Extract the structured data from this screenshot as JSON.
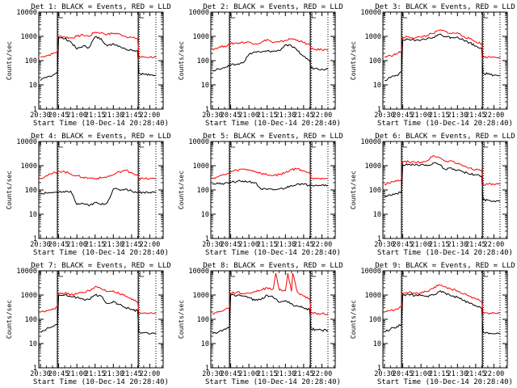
{
  "common": {
    "xlabel": "Start Time (10-Dec-14 20:28:40)",
    "ylabel": "Counts/sec",
    "xticks": [
      "20:30",
      "20:45",
      "21:00",
      "21:15",
      "21:30",
      "21:45",
      "22:00"
    ],
    "xlim": [
      "20:28:40",
      "22:11:00"
    ],
    "yscale": "log",
    "ylim": [
      1,
      10000
    ],
    "yticks": [
      "1",
      "10",
      "100",
      "1000",
      "10000"
    ],
    "solid_markers": [
      "20:44:00",
      "21:50:30"
    ],
    "dotted_markers": [
      "20:44:45",
      "21:51:30",
      "22:05:00"
    ],
    "colors": {
      "events": "#000000",
      "lld": "#ff0000"
    }
  },
  "chart_data": [
    {
      "type": "line",
      "title": "Det 1: BLACK = Events, RED = LLD",
      "x": [
        "20:30",
        "20:35",
        "20:40",
        "20:44",
        "20:45",
        "20:50",
        "20:55",
        "21:00",
        "21:05",
        "21:10",
        "21:15",
        "21:20",
        "21:25",
        "21:30",
        "21:35",
        "21:40",
        "21:45",
        "21:50",
        "21:51",
        "21:55",
        "22:00",
        "22:05"
      ],
      "series": [
        {
          "name": "LLD",
          "values": [
            140,
            160,
            190,
            240,
            1000,
            950,
            850,
            1000,
            1150,
            1000,
            1500,
            1400,
            1200,
            1350,
            1250,
            1000,
            900,
            800,
            140,
            140,
            140,
            140
          ]
        },
        {
          "name": "Events",
          "values": [
            15,
            20,
            25,
            35,
            900,
            800,
            600,
            300,
            400,
            350,
            950,
            800,
            400,
            500,
            400,
            300,
            280,
            250,
            30,
            28,
            25,
            25
          ]
        }
      ]
    },
    {
      "type": "line",
      "title": "Det 2: BLACK = Events, RED = LLD",
      "x": [
        "20:30",
        "20:35",
        "20:40",
        "20:44",
        "20:45",
        "20:50",
        "20:55",
        "21:00",
        "21:05",
        "21:10",
        "21:15",
        "21:20",
        "21:25",
        "21:30",
        "21:35",
        "21:40",
        "21:45",
        "21:50",
        "21:51",
        "21:55",
        "22:00",
        "22:05"
      ],
      "series": [
        {
          "name": "LLD",
          "values": [
            300,
            350,
            400,
            450,
            500,
            530,
            560,
            580,
            500,
            550,
            750,
            550,
            580,
            680,
            800,
            700,
            550,
            450,
            300,
            290,
            280,
            280
          ]
        },
        {
          "name": "Events",
          "values": [
            40,
            45,
            50,
            60,
            65,
            70,
            80,
            180,
            230,
            220,
            250,
            240,
            260,
            450,
            400,
            250,
            150,
            100,
            50,
            48,
            45,
            45
          ]
        }
      ]
    },
    {
      "type": "line",
      "title": "Det 3: BLACK = Events, RED = LLD",
      "x": [
        "20:30",
        "20:35",
        "20:40",
        "20:44",
        "20:45",
        "20:50",
        "20:55",
        "21:00",
        "21:05",
        "21:10",
        "21:15",
        "21:20",
        "21:25",
        "21:30",
        "21:35",
        "21:40",
        "21:45",
        "21:50",
        "21:51",
        "21:55",
        "22:00",
        "22:05"
      ],
      "series": [
        {
          "name": "LLD",
          "values": [
            140,
            160,
            190,
            240,
            900,
            950,
            850,
            950,
            1100,
            1300,
            1800,
            1600,
            1300,
            1400,
            1000,
            800,
            600,
            500,
            140,
            140,
            140,
            140
          ]
        },
        {
          "name": "Events",
          "values": [
            15,
            20,
            25,
            35,
            700,
            750,
            650,
            700,
            800,
            900,
            1200,
            1000,
            900,
            950,
            700,
            550,
            400,
            330,
            30,
            28,
            25,
            25
          ]
        }
      ]
    },
    {
      "type": "line",
      "title": "Det 4: BLACK = Events, RED = LLD",
      "x": [
        "20:30",
        "20:35",
        "20:40",
        "20:44",
        "20:45",
        "20:50",
        "20:55",
        "21:00",
        "21:05",
        "21:10",
        "21:15",
        "21:20",
        "21:25",
        "21:30",
        "21:35",
        "21:40",
        "21:45",
        "21:50",
        "21:51",
        "21:55",
        "22:00",
        "22:05"
      ],
      "series": [
        {
          "name": "LLD",
          "values": [
            300,
            380,
            480,
            560,
            600,
            560,
            460,
            380,
            330,
            310,
            300,
            310,
            350,
            420,
            560,
            640,
            520,
            400,
            300,
            290,
            290,
            290
          ]
        },
        {
          "name": "Events",
          "values": [
            70,
            75,
            80,
            80,
            80,
            80,
            90,
            25,
            28,
            22,
            30,
            25,
            30,
            110,
            100,
            110,
            90,
            80,
            80,
            80,
            80,
            80
          ]
        }
      ]
    },
    {
      "type": "line",
      "title": "Det 5: BLACK = Events, RED = LLD",
      "x": [
        "20:30",
        "20:35",
        "20:40",
        "20:44",
        "20:45",
        "20:50",
        "20:55",
        "21:00",
        "21:05",
        "21:10",
        "21:15",
        "21:20",
        "21:25",
        "21:30",
        "21:35",
        "21:40",
        "21:45",
        "21:50",
        "21:51",
        "21:55",
        "22:00",
        "22:05"
      ],
      "series": [
        {
          "name": "LLD",
          "values": [
            300,
            360,
            430,
            500,
            560,
            650,
            720,
            680,
            580,
            480,
            420,
            400,
            430,
            520,
            700,
            750,
            620,
            480,
            310,
            310,
            310,
            310
          ]
        },
        {
          "name": "Events",
          "values": [
            170,
            180,
            190,
            200,
            210,
            225,
            230,
            220,
            200,
            110,
            105,
            100,
            110,
            120,
            150,
            180,
            170,
            160,
            160,
            160,
            160,
            160
          ]
        }
      ]
    },
    {
      "type": "line",
      "title": "Det 6: BLACK = Events, RED = LLD",
      "x": [
        "20:30",
        "20:35",
        "20:40",
        "20:44",
        "20:45",
        "20:50",
        "20:55",
        "21:00",
        "21:05",
        "21:10",
        "21:15",
        "21:20",
        "21:25",
        "21:30",
        "21:35",
        "21:40",
        "21:45",
        "21:50",
        "21:51",
        "21:55",
        "22:00",
        "22:05"
      ],
      "series": [
        {
          "name": "LLD",
          "values": [
            170,
            200,
            230,
            270,
            1400,
            1450,
            1350,
            1400,
            1600,
            2600,
            2200,
            1500,
            1600,
            1200,
            1000,
            800,
            700,
            650,
            170,
            170,
            170,
            170
          ]
        },
        {
          "name": "Events",
          "values": [
            50,
            60,
            70,
            90,
            1100,
            1150,
            1050,
            1100,
            1000,
            1300,
            1100,
            700,
            800,
            650,
            550,
            450,
            420,
            380,
            40,
            38,
            35,
            35
          ]
        }
      ]
    },
    {
      "type": "line",
      "title": "Det 7: BLACK = Events, RED = LLD",
      "x": [
        "20:30",
        "20:35",
        "20:40",
        "20:44",
        "20:45",
        "20:50",
        "20:55",
        "21:00",
        "21:05",
        "21:10",
        "21:15",
        "21:20",
        "21:25",
        "21:30",
        "21:35",
        "21:40",
        "21:45",
        "21:50",
        "21:51",
        "21:55",
        "22:00",
        "22:05"
      ],
      "series": [
        {
          "name": "LLD",
          "values": [
            200,
            230,
            270,
            320,
            1100,
            1200,
            1050,
            1100,
            1300,
            1500,
            2200,
            1800,
            1400,
            1500,
            1100,
            900,
            650,
            500,
            180,
            180,
            180,
            180
          ]
        },
        {
          "name": "Events",
          "values": [
            30,
            40,
            50,
            60,
            950,
            1000,
            850,
            800,
            700,
            650,
            1000,
            900,
            450,
            550,
            400,
            300,
            260,
            220,
            30,
            28,
            25,
            25
          ]
        }
      ]
    },
    {
      "type": "line",
      "title": "Det 8: BLACK = Events, RED = LLD",
      "x": [
        "20:30",
        "20:35",
        "20:40",
        "20:44",
        "20:45",
        "20:50",
        "20:55",
        "21:00",
        "21:05",
        "21:10",
        "21:15",
        "21:20",
        "21:22",
        "21:25",
        "21:30",
        "21:32",
        "21:35",
        "21:36",
        "21:40",
        "21:45",
        "21:50",
        "21:51",
        "21:55",
        "22:00",
        "22:05"
      ],
      "series": [
        {
          "name": "LLD",
          "values": [
            170,
            200,
            250,
            300,
            1200,
            1300,
            1150,
            1200,
            1400,
            1600,
            2000,
            1800,
            8000,
            1600,
            1500,
            8000,
            1400,
            8000,
            1300,
            900,
            700,
            180,
            180,
            170,
            170
          ]
        },
        {
          "name": "Events",
          "values": [
            25,
            30,
            40,
            50,
            1000,
            950,
            900,
            800,
            600,
            650,
            1000,
            800,
            700,
            500,
            600,
            500,
            450,
            400,
            350,
            300,
            250,
            40,
            38,
            35,
            35
          ]
        }
      ]
    },
    {
      "type": "line",
      "title": "Det 9: BLACK = Events, RED = LLD",
      "x": [
        "20:30",
        "20:35",
        "20:40",
        "20:44",
        "20:45",
        "20:50",
        "20:55",
        "21:00",
        "21:05",
        "21:10",
        "21:15",
        "21:20",
        "21:25",
        "21:30",
        "21:35",
        "21:40",
        "21:45",
        "21:50",
        "21:51",
        "21:55",
        "22:00",
        "22:05"
      ],
      "series": [
        {
          "name": "LLD",
          "values": [
            200,
            230,
            270,
            320,
            1200,
            1300,
            1150,
            1200,
            1400,
            1800,
            2700,
            2200,
            1700,
            1500,
            1100,
            900,
            700,
            550,
            180,
            180,
            180,
            180
          ]
        },
        {
          "name": "Events",
          "values": [
            30,
            40,
            50,
            60,
            1000,
            1050,
            950,
            950,
            900,
            1000,
            1400,
            1200,
            900,
            800,
            600,
            450,
            350,
            280,
            30,
            28,
            25,
            25
          ]
        }
      ]
    }
  ]
}
